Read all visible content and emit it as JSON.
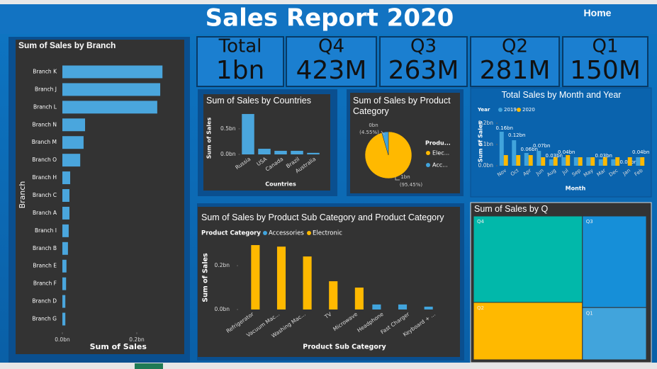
{
  "header": {
    "title": "Sales Report 2020",
    "home": "Home"
  },
  "cards": [
    {
      "label": "Total",
      "value": "1bn"
    },
    {
      "label": "Q4",
      "value": "423M"
    },
    {
      "label": "Q3",
      "value": "263M"
    },
    {
      "label": "Q2",
      "value": "281M"
    },
    {
      "label": "Q1",
      "value": "150M"
    }
  ],
  "chart_data": [
    {
      "type": "hbar",
      "title": "Sum of Sales by Branch",
      "categories": [
        "Branch K",
        "Branch J",
        "Branch L",
        "Branch N",
        "Branch M",
        "Branch O",
        "Branch H",
        "Branch C",
        "Branch A",
        "Branch I",
        "Branch B",
        "Branch E",
        "Branch F",
        "Branch D",
        "Branch G"
      ],
      "values": [
        0.269,
        0.263,
        0.255,
        0.061,
        0.057,
        0.048,
        0.021,
        0.019,
        0.019,
        0.017,
        0.015,
        0.011,
        0.01,
        0.008,
        0.008
      ],
      "color": "#4aa6dd",
      "xlabel": "Sum of Sales",
      "ylabel": "Branch",
      "xlim": [
        0,
        0.3
      ],
      "xticks": [
        {
          "value": 0,
          "label": "0.0bn"
        },
        {
          "value": 0.2,
          "label": "0.2bn"
        }
      ]
    },
    {
      "type": "bar",
      "title": "Sum of Sales by Countries",
      "categories": [
        "Russia",
        "USA",
        "Canada",
        "Brazil",
        "Australia"
      ],
      "values": [
        0.79,
        0.11,
        0.07,
        0.07,
        0.03
      ],
      "color": "#4aa6dd",
      "xlabel": "Countries",
      "ylabel": "Sum of Sales",
      "ylim": [
        0,
        0.9
      ],
      "yticks": [
        {
          "value": 0,
          "label": "0.0bn"
        },
        {
          "value": 0.5,
          "label": "0.5bn"
        }
      ]
    },
    {
      "type": "pie",
      "title": "Sum of Sales by Product Category",
      "legend_title": "Produ...",
      "categories": [
        "Elec...",
        "Acc..."
      ],
      "values": [
        95.45,
        4.55
      ],
      "value_labels": [
        "(95.45%)",
        "(4.55%)"
      ],
      "amount_labels": [
        "1bn",
        "0bn"
      ],
      "colors": [
        "#ffb900",
        "#41a4dc"
      ]
    },
    {
      "type": "grouped_bar",
      "title": "Total Sales by Month and Year",
      "legend_title": "Year",
      "xlabel": "Month",
      "ylabel": "Sum of Sales",
      "categories": [
        "Nov",
        "Oct",
        "Apr",
        "Jun",
        "Aug",
        "Jul",
        "Sep",
        "May",
        "Mar",
        "Dec",
        "Jan",
        "Feb"
      ],
      "series": [
        {
          "name": "2019",
          "color": "#41a4dc",
          "values": [
            0.16,
            0.12,
            0.06,
            0.07,
            0.03,
            0.04,
            0.04,
            0.04,
            0.03,
            0.03,
            0.0,
            0.04
          ],
          "value_labels": [
            "0.16bn",
            "0.12bn",
            "0.06bn",
            "0.07bn",
            "0.03bn",
            "0.04bn",
            null,
            null,
            "0.03bn",
            null,
            "0.00bn",
            "0.04bn"
          ]
        },
        {
          "name": "2020",
          "color": "#ffb900",
          "values": [
            0.05,
            0.05,
            0.05,
            0.04,
            0.04,
            0.05,
            0.04,
            0.04,
            0.04,
            0.04,
            0.04,
            0.04
          ]
        }
      ],
      "ylim": [
        0,
        0.22
      ],
      "yticks": [
        {
          "value": 0,
          "label": "0.0bn"
        },
        {
          "value": 0.1,
          "label": "0.1bn"
        },
        {
          "value": 0.2,
          "label": "0.2bn"
        }
      ]
    },
    {
      "type": "grouped_bar",
      "title": "Sum of Sales by Product Sub Category and Product Category",
      "legend_title": "Product Category",
      "xlabel": "Product Sub Category",
      "ylabel": "Sum of Sales",
      "categories": [
        "Refrigerator",
        "Vacuum Mac...",
        "Washing Mac...",
        "TV",
        "Microwave",
        "Headphone",
        "Fast Charger",
        "Keyboard + ..."
      ],
      "series": [
        {
          "name": "Accessories",
          "color": "#41a4dc",
          "values": [
            null,
            null,
            null,
            null,
            null,
            0.023,
            0.023,
            0.013
          ]
        },
        {
          "name": "Electronic",
          "color": "#ffb900",
          "values": [
            0.294,
            0.287,
            0.242,
            0.129,
            0.1,
            null,
            null,
            null
          ]
        }
      ],
      "ylim": [
        0,
        0.32
      ],
      "yticks": [
        {
          "value": 0,
          "label": "0.0bn"
        },
        {
          "value": 0.2,
          "label": "0.2bn"
        }
      ]
    },
    {
      "type": "treemap",
      "title": "Sum of Sales by Q",
      "categories": [
        "Q4",
        "Q3",
        "Q2",
        "Q1"
      ],
      "values": [
        423,
        263,
        281,
        150
      ],
      "colors": [
        "#01b8aa",
        "#168fd8",
        "#ffb900",
        "#41a4dc"
      ]
    }
  ]
}
